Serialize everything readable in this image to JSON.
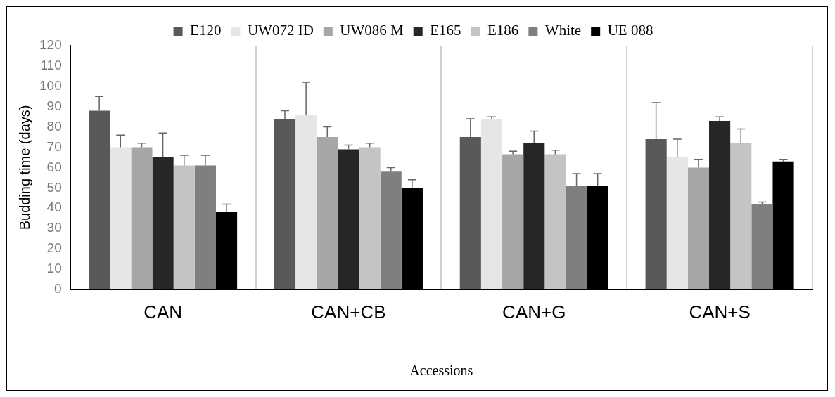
{
  "chart_data": {
    "type": "bar",
    "xlabel": "Accessions",
    "ylabel": "Budding time (days)",
    "categories": [
      "CAN",
      "CAN+CB",
      "CAN+G",
      "CAN+S"
    ],
    "ylim": [
      0,
      120
    ],
    "yticks": [
      0,
      10,
      20,
      30,
      40,
      50,
      60,
      70,
      80,
      90,
      100,
      110,
      120
    ],
    "grid": "x",
    "legend": "top",
    "series": [
      {
        "name": "E120",
        "color": "#595959",
        "values": [
          88,
          84,
          75,
          74
        ],
        "errors": [
          7,
          4,
          9,
          18
        ]
      },
      {
        "name": "UW072 ID",
        "color": "#e6e6e6",
        "values": [
          70,
          86,
          84,
          65
        ],
        "errors": [
          6,
          16,
          1,
          9
        ]
      },
      {
        "name": "UW086 M",
        "color": "#a6a6a6",
        "values": [
          70,
          75,
          66.5,
          60
        ],
        "errors": [
          2,
          5,
          1.5,
          4
        ]
      },
      {
        "name": "E165",
        "color": "#262626",
        "values": [
          65,
          69,
          72,
          83
        ],
        "errors": [
          12,
          2,
          6,
          2
        ]
      },
      {
        "name": "E186",
        "color": "#c4c4c4",
        "values": [
          61,
          70,
          66.5,
          72
        ],
        "errors": [
          5,
          2,
          2,
          7
        ]
      },
      {
        "name": "White",
        "color": "#7f7f7f",
        "values": [
          61,
          58,
          51,
          42
        ],
        "errors": [
          5,
          2,
          6,
          1
        ]
      },
      {
        "name": "UE 088",
        "color": "#000000",
        "values": [
          38,
          50,
          51,
          63
        ],
        "errors": [
          4,
          4,
          6,
          1
        ]
      }
    ]
  }
}
